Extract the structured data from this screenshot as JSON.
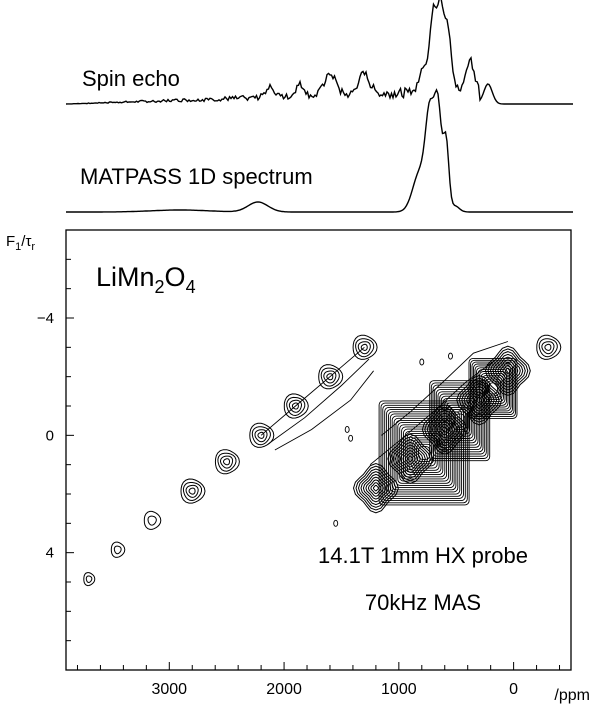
{
  "chart_data": {
    "type": "contour",
    "top_traces": [
      {
        "name": "Spin echo",
        "label_color": "#000000"
      },
      {
        "name": "MATPASS 1D spectrum",
        "label_color": "#e066e0"
      }
    ],
    "sample": {
      "base": "LiMn",
      "sub1": "2",
      "mid": "O",
      "sub2": "4"
    },
    "annotation": [
      "14.1T 1mm HX probe",
      "70kHz MAS"
    ],
    "xaxis": {
      "unit": "ppm",
      "range": [
        3900,
        -500
      ],
      "ticks": [
        3000,
        2000,
        1000,
        0
      ],
      "reversed": true
    },
    "yaxis": {
      "label_main": "F",
      "label_sub1": "1",
      "label_slash": "/τ",
      "label_sub2": "r",
      "range": [
        -7,
        8
      ],
      "ticks": [
        -4,
        0,
        4
      ],
      "reversed": true
    },
    "peaks": [
      {
        "x": 3700,
        "y": 4.9
      },
      {
        "x": 3450,
        "y": 3.9
      },
      {
        "x": 3150,
        "y": 2.9
      },
      {
        "x": 2800,
        "y": 1.9
      },
      {
        "x": 2500,
        "y": 0.9
      },
      {
        "x": 2200,
        "y": 0.0
      },
      {
        "x": 1900,
        "y": -1.0
      },
      {
        "x": 1600,
        "y": -2.0
      },
      {
        "x": 1300,
        "y": -3.0
      },
      {
        "x": 1200,
        "y": 1.8
      },
      {
        "x": 900,
        "y": 0.8
      },
      {
        "x": 600,
        "y": -0.2
      },
      {
        "x": 300,
        "y": -1.2
      },
      {
        "x": 50,
        "y": -2.2
      },
      {
        "x": -300,
        "y": -3.0
      }
    ]
  }
}
